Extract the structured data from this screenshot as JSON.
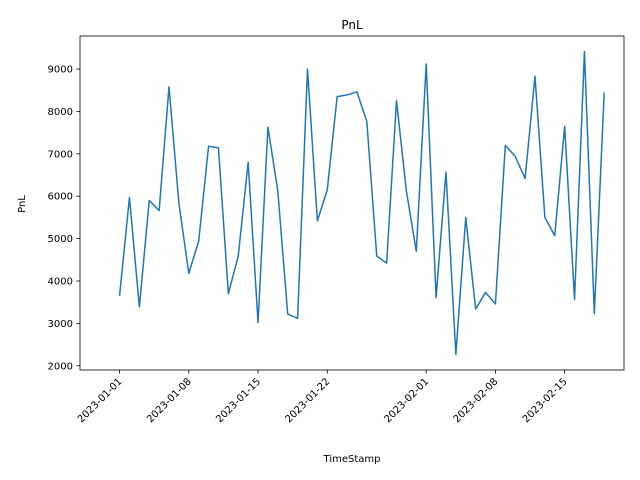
{
  "chart_data": {
    "type": "line",
    "title": "PnL",
    "xlabel": "TimeStamp",
    "ylabel": "PnL",
    "grid": false,
    "line_color": "#1f77b4",
    "x": [
      "2023-01-01",
      "2023-01-02",
      "2023-01-03",
      "2023-01-04",
      "2023-01-05",
      "2023-01-06",
      "2023-01-07",
      "2023-01-08",
      "2023-01-09",
      "2023-01-10",
      "2023-01-11",
      "2023-01-12",
      "2023-01-13",
      "2023-01-14",
      "2023-01-15",
      "2023-01-16",
      "2023-01-17",
      "2023-01-18",
      "2023-01-19",
      "2023-01-20",
      "2023-01-21",
      "2023-01-22",
      "2023-01-23",
      "2023-01-24",
      "2023-01-25",
      "2023-01-26",
      "2023-01-27",
      "2023-01-28",
      "2023-01-29",
      "2023-01-30",
      "2023-01-31",
      "2023-02-01",
      "2023-02-02",
      "2023-02-03",
      "2023-02-04",
      "2023-02-05",
      "2023-02-06",
      "2023-02-07",
      "2023-02-08",
      "2023-02-09",
      "2023-02-10",
      "2023-02-11",
      "2023-02-12",
      "2023-02-13",
      "2023-02-14",
      "2023-02-15",
      "2023-02-16",
      "2023-02-17",
      "2023-02-18",
      "2023-02-19"
    ],
    "values": [
      3650,
      5970,
      3390,
      5900,
      5660,
      8580,
      5830,
      4180,
      4940,
      7180,
      7140,
      3700,
      4590,
      6800,
      3020,
      7630,
      6120,
      3220,
      3120,
      9000,
      5420,
      6150,
      8350,
      8390,
      8460,
      7760,
      4590,
      4420,
      8250,
      6120,
      4700,
      9120,
      3610,
      6570,
      2270,
      5500,
      3340,
      3730,
      3460,
      7200,
      6940,
      6420,
      8830,
      5500,
      5070,
      7650,
      3570,
      9410,
      3230,
      8450
    ],
    "xticks": [
      "2023-01-01",
      "2023-01-08",
      "2023-01-15",
      "2023-01-22",
      "2023-02-01",
      "2023-02-08",
      "2023-02-15"
    ],
    "yticks": [
      2000,
      3000,
      4000,
      5000,
      6000,
      7000,
      8000,
      9000
    ],
    "xlim": [
      "2022-12-28",
      "2023-02-21"
    ],
    "ylim": [
      1900,
      9780
    ]
  }
}
